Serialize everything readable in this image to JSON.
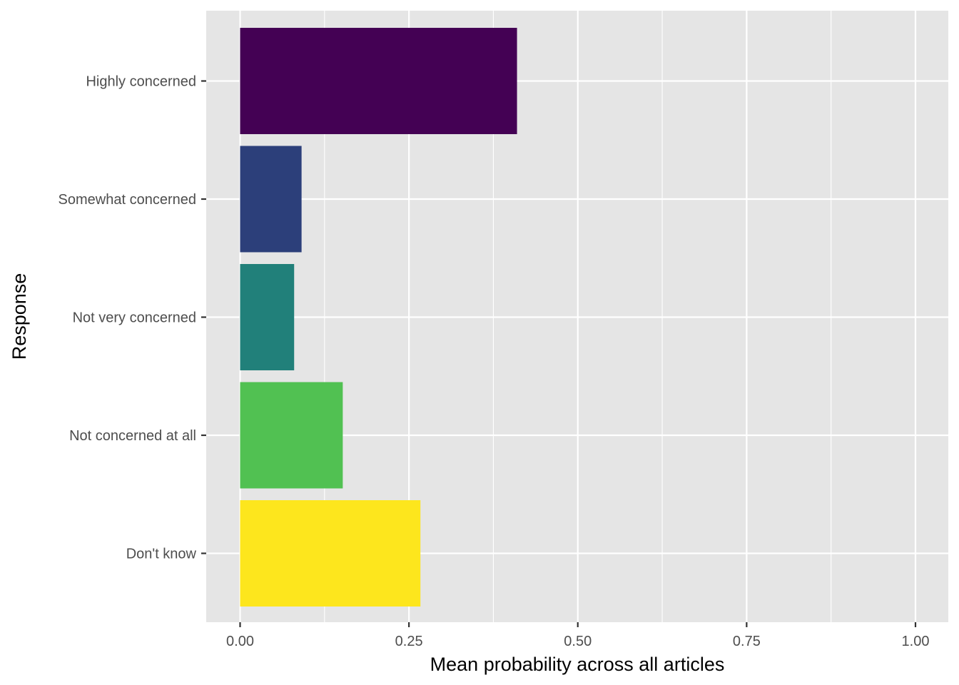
{
  "chart_data": {
    "type": "bar",
    "orientation": "horizontal",
    "categories": [
      "Highly concerned",
      "Somewhat concerned",
      "Not very concerned",
      "Not concerned at all",
      "Don't know"
    ],
    "values": [
      0.41,
      0.091,
      0.08,
      0.152,
      0.267
    ],
    "colors": [
      "#440154",
      "#2c3f7a",
      "#21807a",
      "#51c152",
      "#fde61d"
    ],
    "title": "",
    "xlabel": "Mean probability across all articles",
    "ylabel": "Response",
    "xlim": [
      0,
      1
    ],
    "x_ticks": [
      0,
      0.25,
      0.5,
      0.75,
      1
    ],
    "x_tick_labels": [
      "0.00",
      "0.25",
      "0.50",
      "0.75",
      "1.00"
    ],
    "grid": true,
    "legend": "none",
    "panel_background": "#e5e5e5",
    "grid_color": "#ffffff"
  }
}
